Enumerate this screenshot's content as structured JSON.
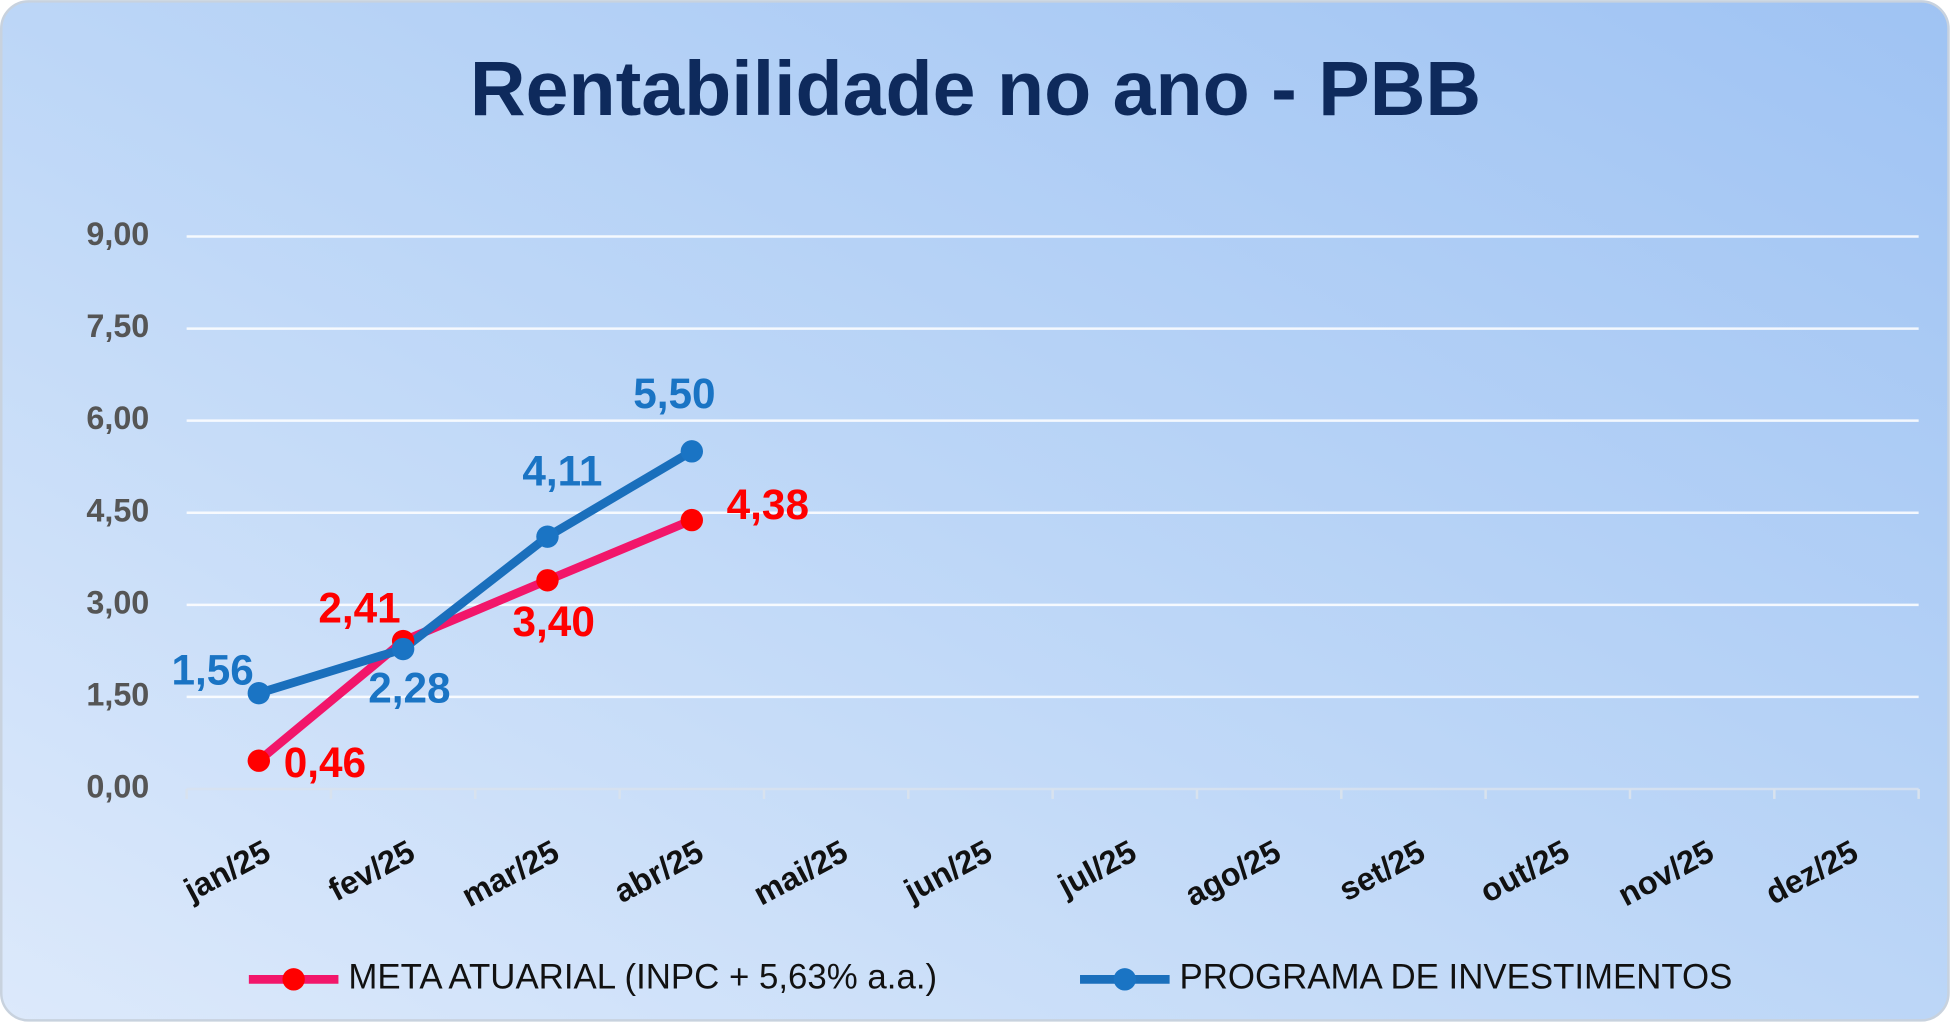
{
  "chart_data": {
    "type": "line",
    "title": "Rentabilidade no ano - PBB",
    "categories": [
      "jan/25",
      "fev/25",
      "mar/25",
      "abr/25",
      "mai/25",
      "jun/25",
      "jul/25",
      "ago/25",
      "set/25",
      "out/25",
      "nov/25",
      "dez/25"
    ],
    "series": [
      {
        "name": "META ATUARIAL (INPC + 5,63% a.a.)",
        "color": "#f2166a",
        "marker_color": "#ff0000",
        "values": [
          0.46,
          2.41,
          3.4,
          4.38,
          null,
          null,
          null,
          null,
          null,
          null,
          null,
          null
        ],
        "value_labels": [
          "0,46",
          "2,41",
          "3,40",
          "4,38",
          null,
          null,
          null,
          null,
          null,
          null,
          null,
          null
        ]
      },
      {
        "name": "PROGRAMA DE INVESTIMENTOS",
        "color": "#1a6fbc",
        "marker_color": "#1a74c4",
        "values": [
          1.56,
          2.28,
          4.11,
          5.5,
          null,
          null,
          null,
          null,
          null,
          null,
          null,
          null
        ],
        "value_labels": [
          "1,56",
          "2,28",
          "4,11",
          "5,50",
          null,
          null,
          null,
          null,
          null,
          null,
          null,
          null
        ]
      }
    ],
    "ylim": [
      0,
      9
    ],
    "yticks": [
      {
        "value": 0,
        "label": "0,00"
      },
      {
        "value": 1.5,
        "label": "1,50"
      },
      {
        "value": 3,
        "label": "3,00"
      },
      {
        "value": 4.5,
        "label": "4,50"
      },
      {
        "value": 6,
        "label": "6,00"
      },
      {
        "value": 7.5,
        "label": "7,50"
      },
      {
        "value": 9,
        "label": "9,00"
      }
    ],
    "grid": true,
    "legend": "bottom"
  }
}
